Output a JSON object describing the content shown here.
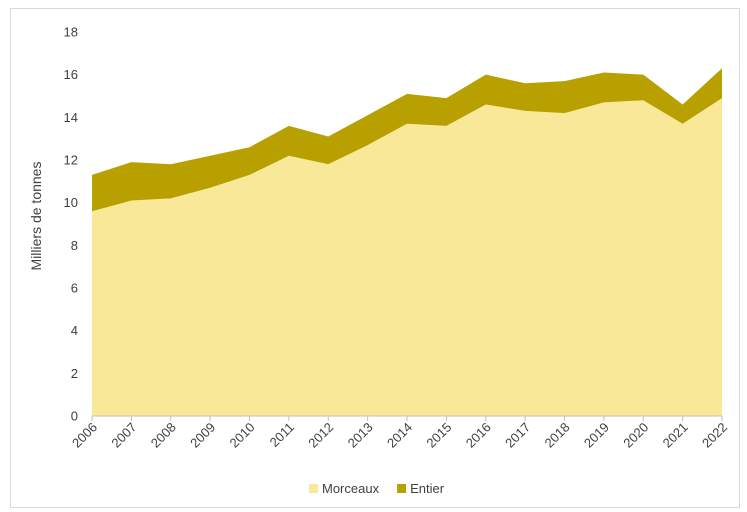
{
  "chart_data": {
    "type": "area",
    "stacked": true,
    "title": "",
    "xlabel": "",
    "ylabel": "Milliers de tonnes",
    "ylim": [
      0,
      18
    ],
    "yticks": [
      0,
      2,
      4,
      6,
      8,
      10,
      12,
      14,
      16,
      18
    ],
    "grid": false,
    "legend_position": "bottom",
    "categories": [
      "2006",
      "2007",
      "2008",
      "2009",
      "2010",
      "2011",
      "2012",
      "2013",
      "2014",
      "2015",
      "2016",
      "2017",
      "2018",
      "2019",
      "2020",
      "2021",
      "2022"
    ],
    "series": [
      {
        "name": "Morceaux",
        "color": "#f9e898",
        "values": [
          9.6,
          10.1,
          10.2,
          10.7,
          11.3,
          12.2,
          11.8,
          12.7,
          13.7,
          13.6,
          14.6,
          14.3,
          14.2,
          14.7,
          14.8,
          13.7,
          14.9
        ]
      },
      {
        "name": "Entier",
        "color": "#b8a000",
        "values": [
          1.7,
          1.8,
          1.6,
          1.5,
          1.3,
          1.4,
          1.3,
          1.4,
          1.4,
          1.3,
          1.4,
          1.3,
          1.5,
          1.4,
          1.2,
          0.9,
          1.4
        ]
      }
    ]
  }
}
